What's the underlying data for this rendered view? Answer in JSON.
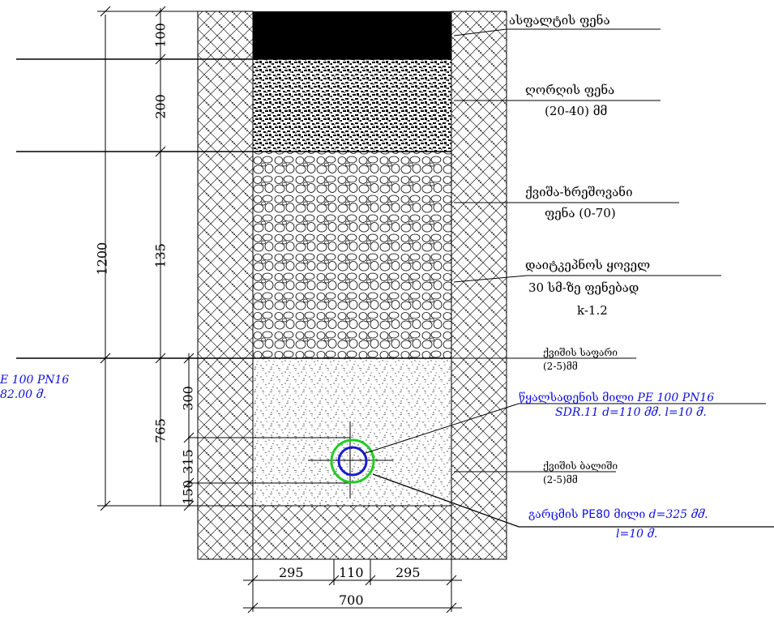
{
  "layers": {
    "asphalt": {
      "label": "ასფალტის ფენა"
    },
    "gravel": {
      "label_1": "ღორღის ფენა",
      "label_2": "(20-40) მმ"
    },
    "sand_gravel": {
      "label_1": "ქვიშა-ხრეშოვანი",
      "label_2": "ფენა (0-70)"
    },
    "compaction": {
      "label_1": "დაიტკეპნოს ყოველ",
      "label_2": "30 სმ-ზე ფენებად",
      "label_3": "k-1.2"
    },
    "sand_bed": {
      "label_1": "ქვიშის საფარი",
      "label_2": "(2-5)მმ"
    },
    "sand_fill": {
      "label_1": "ქვიშის ბალიში",
      "label_2": "(2-5)მმ"
    }
  },
  "pipes": {
    "water": {
      "label_1a": "წყალსადენის მილი",
      "label_1b": "PE 100 PN16",
      "label_2": "SDR.11 d=110 მმ. l=10 მ."
    },
    "casing": {
      "label_1a": "გარცმის",
      "label_1b": "PE80",
      "label_1c": "მილი",
      "label_1d": "d=325 მმ.",
      "label_2": "l=10 მ."
    },
    "left_cut": {
      "label_1": "E 100  PN16",
      "label_2": "82.00 მ."
    }
  },
  "dimensions": {
    "d100": "100",
    "d200": "200",
    "d135": "135",
    "d1200": "1200",
    "d300": "300",
    "d765": "765",
    "d315": "315",
    "d150": "150",
    "d295a": "295",
    "d110": "110",
    "d295b": "295",
    "d700": "700"
  },
  "colors": {
    "outline": "#000000",
    "annotation_blue": "#1010e0",
    "pipe_inner": "#1a1ad0",
    "pipe_outer": "#22cc22"
  }
}
